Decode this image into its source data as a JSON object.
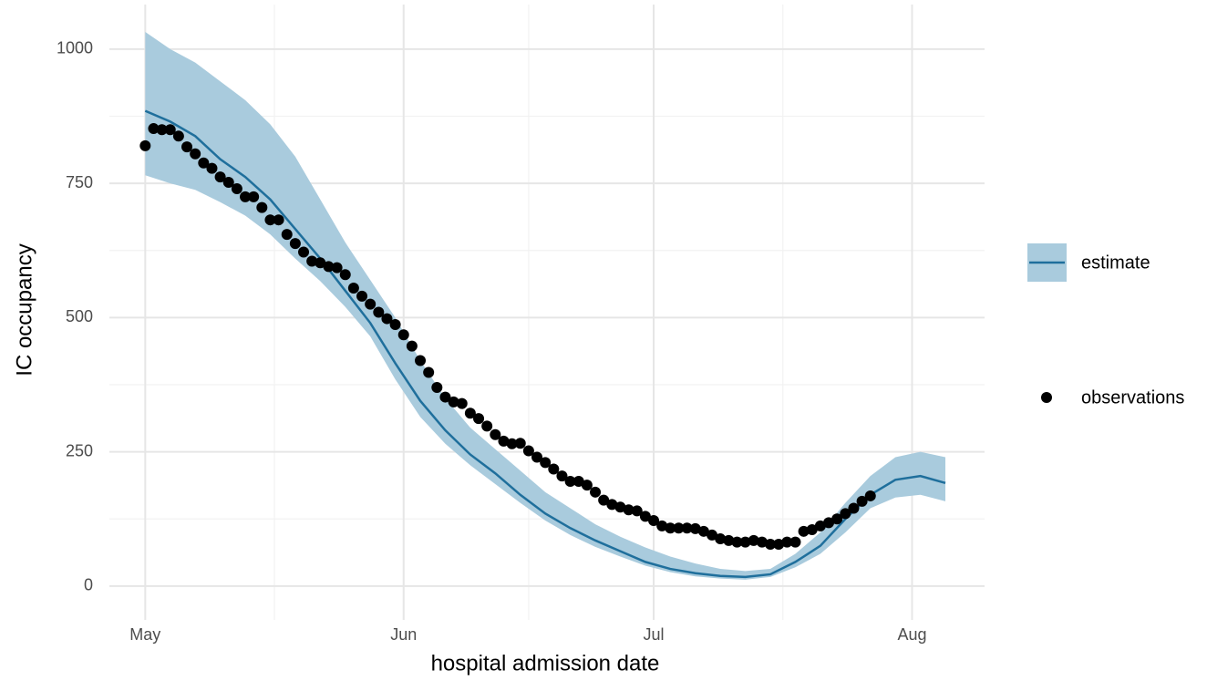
{
  "chart_data": {
    "type": "line",
    "x_label": "hospital admission date",
    "y_label": "IC occupancy",
    "xlim": [
      -4.3,
      100.7
    ],
    "xticks": [
      {
        "value": 0,
        "label": "May"
      },
      {
        "value": 31,
        "label": "Jun"
      },
      {
        "value": 61,
        "label": "Jul"
      },
      {
        "value": 92,
        "label": "Aug"
      }
    ],
    "ylim": [
      -63,
      1083
    ],
    "yticks": [
      0,
      250,
      500,
      750,
      1000
    ],
    "grid": true,
    "minor_grid": true,
    "legend": "right",
    "series": [
      {
        "name": "estimate",
        "type": "line",
        "band": true,
        "color": "#1f6f9c",
        "band_color": "#a9cbdd",
        "x": [
          0,
          3,
          6,
          9,
          12,
          15,
          18,
          21,
          24,
          27,
          30,
          33,
          36,
          39,
          42,
          45,
          48,
          51,
          54,
          57,
          60,
          63,
          66,
          69,
          72,
          75,
          78,
          81,
          84,
          87,
          90,
          93,
          96
        ],
        "values": [
          885,
          865,
          838,
          795,
          762,
          720,
          665,
          610,
          550,
          490,
          415,
          345,
          290,
          245,
          210,
          170,
          135,
          108,
          85,
          65,
          45,
          32,
          24,
          19,
          17,
          22,
          45,
          75,
          125,
          170,
          198,
          205,
          192
        ],
        "lower": [
          765,
          750,
          738,
          715,
          690,
          655,
          610,
          568,
          520,
          465,
          385,
          315,
          265,
          225,
          190,
          155,
          122,
          95,
          73,
          55,
          38,
          26,
          18,
          14,
          12,
          17,
          35,
          60,
          100,
          145,
          165,
          170,
          158
        ],
        "upper": [
          1032,
          1000,
          975,
          940,
          905,
          860,
          800,
          720,
          640,
          570,
          500,
          420,
          350,
          295,
          255,
          215,
          175,
          145,
          115,
          92,
          72,
          55,
          42,
          32,
          28,
          32,
          60,
          100,
          155,
          205,
          240,
          250,
          240
        ]
      },
      {
        "name": "observations",
        "type": "scatter",
        "color": "#000000",
        "x": [
          0,
          1,
          2,
          3,
          4,
          5,
          6,
          7,
          8,
          9,
          10,
          11,
          12,
          13,
          14,
          15,
          16,
          17,
          18,
          19,
          20,
          21,
          22,
          23,
          24,
          25,
          26,
          27,
          28,
          29,
          30,
          31,
          32,
          33,
          34,
          35,
          36,
          37,
          38,
          39,
          40,
          41,
          42,
          43,
          44,
          45,
          46,
          47,
          48,
          49,
          50,
          51,
          52,
          53,
          54,
          55,
          56,
          57,
          58,
          59,
          60,
          61,
          62,
          63,
          64,
          65,
          66,
          67,
          68,
          69,
          70,
          71,
          72,
          73,
          74,
          75,
          76,
          77,
          78,
          79,
          80,
          81,
          82,
          83,
          84,
          85,
          86,
          87
        ],
        "values": [
          820,
          852,
          850,
          850,
          838,
          818,
          805,
          788,
          778,
          762,
          752,
          740,
          725,
          725,
          705,
          682,
          682,
          655,
          638,
          622,
          605,
          602,
          595,
          593,
          580,
          555,
          540,
          525,
          510,
          498,
          487,
          468,
          447,
          420,
          398,
          370,
          352,
          343,
          340,
          322,
          312,
          298,
          282,
          270,
          265,
          266,
          252,
          240,
          230,
          218,
          205,
          195,
          195,
          188,
          175,
          160,
          152,
          147,
          142,
          140,
          130,
          122,
          112,
          108,
          108,
          108,
          107,
          102,
          95,
          88,
          85,
          82,
          82,
          85,
          82,
          78,
          78,
          82,
          82,
          102,
          105,
          112,
          118,
          125,
          135,
          145,
          158,
          168
        ]
      }
    ]
  }
}
